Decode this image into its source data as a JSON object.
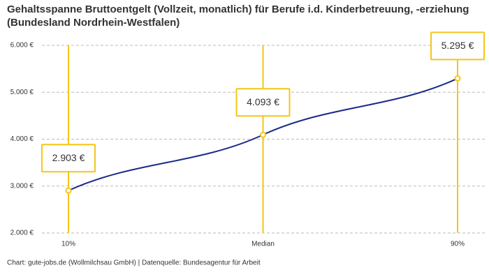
{
  "chart_data": {
    "type": "line",
    "title": "Gehaltsspanne Bruttoentgelt (Vollzeit, monatlich) für Berufe i.d. Kinderbetreuung, -erziehung (Bundesland Nordrhein-Westfalen)",
    "categories": [
      "10%",
      "Median",
      "90%"
    ],
    "series": [
      {
        "name": "Bruttoentgelt",
        "color": "#1b2a88",
        "values": [
          2903,
          4093,
          5295
        ],
        "value_labels": [
          "2.903 €",
          "4.093 €",
          "5.295 €"
        ]
      }
    ],
    "marker_color": "#f5c518",
    "ylim": [
      2000,
      6000
    ],
    "yticks": [
      {
        "value": 2000,
        "label": "2.000 €"
      },
      {
        "value": 3000,
        "label": "3.000 €"
      },
      {
        "value": 4000,
        "label": "4.000 €"
      },
      {
        "value": 5000,
        "label": "5.000 €"
      },
      {
        "value": 6000,
        "label": "6.000 €"
      }
    ],
    "grid": true,
    "footer": "Chart: gute-jobs.de (Wollmilchsau GmbH) | Datenquelle: Bundesagentur für Arbeit"
  }
}
